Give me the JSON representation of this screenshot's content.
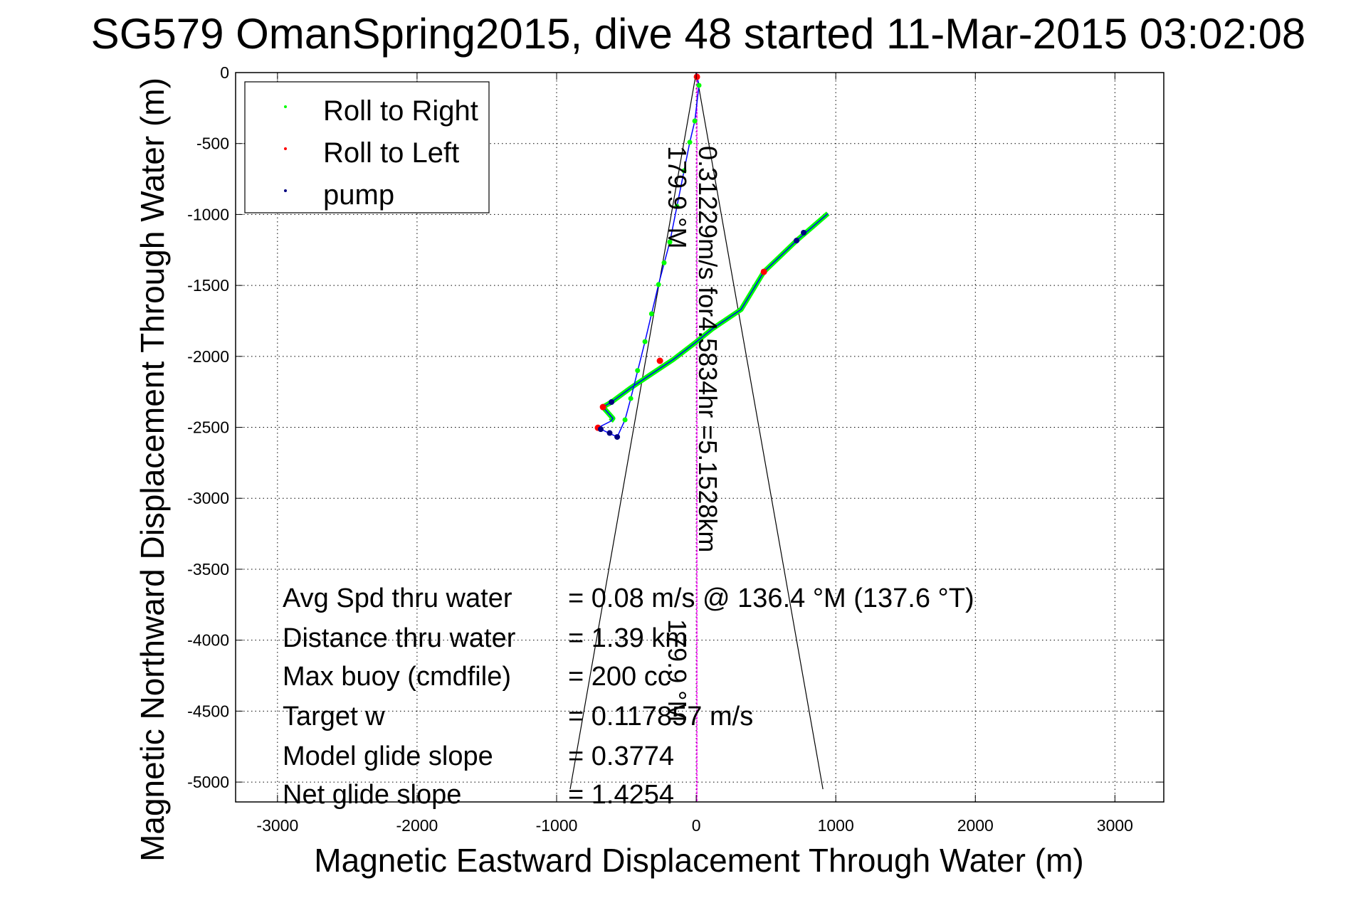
{
  "chart_data": {
    "type": "line",
    "title": "SG579 OmanSpring2015, dive 48 started 11-Mar-2015 03:02:08",
    "xlabel": "Magnetic Eastward Displacement Through Water (m)",
    "ylabel": "Magnetic Northward Displacement Through Water (m)",
    "xlim": [
      -3300,
      3350
    ],
    "ylim": [
      -5140,
      0
    ],
    "xticks": [
      -3000,
      -2000,
      -1000,
      0,
      1000,
      2000,
      3000
    ],
    "yticks": [
      0,
      -500,
      -1000,
      -1500,
      -2000,
      -2500,
      -3000,
      -3500,
      -4000,
      -4500,
      -5000
    ],
    "grid": true,
    "legend": {
      "placement": "top-left",
      "entries": [
        {
          "label": "Roll to Right",
          "color": "#00ff00"
        },
        {
          "label": "Roll to Left",
          "color": "#ff0000"
        },
        {
          "label": "pump",
          "color": "#000080"
        }
      ]
    },
    "track": {
      "color": "#0000ff",
      "x": [
        0,
        20,
        -10,
        -46,
        -87,
        -138,
        -189,
        -270,
        -367,
        -469,
        -510,
        -566,
        -684,
        -704,
        -612,
        -597,
        -668,
        -607,
        -469,
        -316,
        -163,
        -10,
        117,
        321,
        485,
        719,
        944
      ],
      "y": [
        0,
        -90,
        -341,
        -491,
        -692,
        -943,
        -1194,
        -1494,
        -1896,
        -2297,
        -2447,
        -2568,
        -2513,
        -2503,
        -2457,
        -2437,
        -2357,
        -2322,
        -2222,
        -2121,
        -2021,
        -1906,
        -1805,
        -1670,
        -1404,
        -1184,
        -993
      ]
    },
    "ascent_roll_right_from_index": 14,
    "roll_right_points": {
      "x": [
        20,
        -10,
        -46,
        -87,
        -138,
        -189,
        -230,
        -270,
        -320,
        -367,
        -420,
        -469,
        -510
      ],
      "y": [
        -90,
        -341,
        -491,
        -692,
        -943,
        -1194,
        -1340,
        -1494,
        -1700,
        -1896,
        -2100,
        -2297,
        -2447
      ]
    },
    "roll_left_points": {
      "x": [
        5,
        -704,
        -668,
        -260,
        485
      ],
      "y": [
        -30,
        -2503,
        -2357,
        -2031,
        -1404
      ]
    },
    "pump_points": {
      "x": [
        -566,
        -620,
        -684,
        -607,
        719,
        770
      ],
      "y": [
        -2568,
        -2540,
        -2513,
        -2322,
        -1184,
        -1128
      ]
    },
    "cone_lines": [
      {
        "x": [
          0,
          -903
        ],
        "y": [
          0,
          -5050
        ]
      },
      {
        "x": [
          0,
          908
        ],
        "y": [
          0,
          -5050
        ]
      }
    ],
    "heading_line": {
      "color": "#ff00ff",
      "x": [
        5,
        5
      ],
      "y": [
        0,
        -5140
      ]
    },
    "annotations": {
      "current": "0.31229m/s for4.5834hr =5.1528km",
      "heading_1": "179.9 °M",
      "heading_2": "179.9 °M"
    },
    "stats": [
      {
        "label": "Avg Spd thru water",
        "value": "=  0.08 m/s @ 136.4 °M (137.6 °T)"
      },
      {
        "label": "Distance thru water",
        "value": "=  1.39 km"
      },
      {
        "label": "Max buoy (cmdfile)",
        "value": "= 200 cc"
      },
      {
        "label": "Target w",
        "value": "= 0.117857 m/s"
      },
      {
        "label": "Model glide slope",
        "value": "= 0.3774"
      },
      {
        "label": "Net glide slope",
        "value": "= 1.4254"
      }
    ]
  }
}
